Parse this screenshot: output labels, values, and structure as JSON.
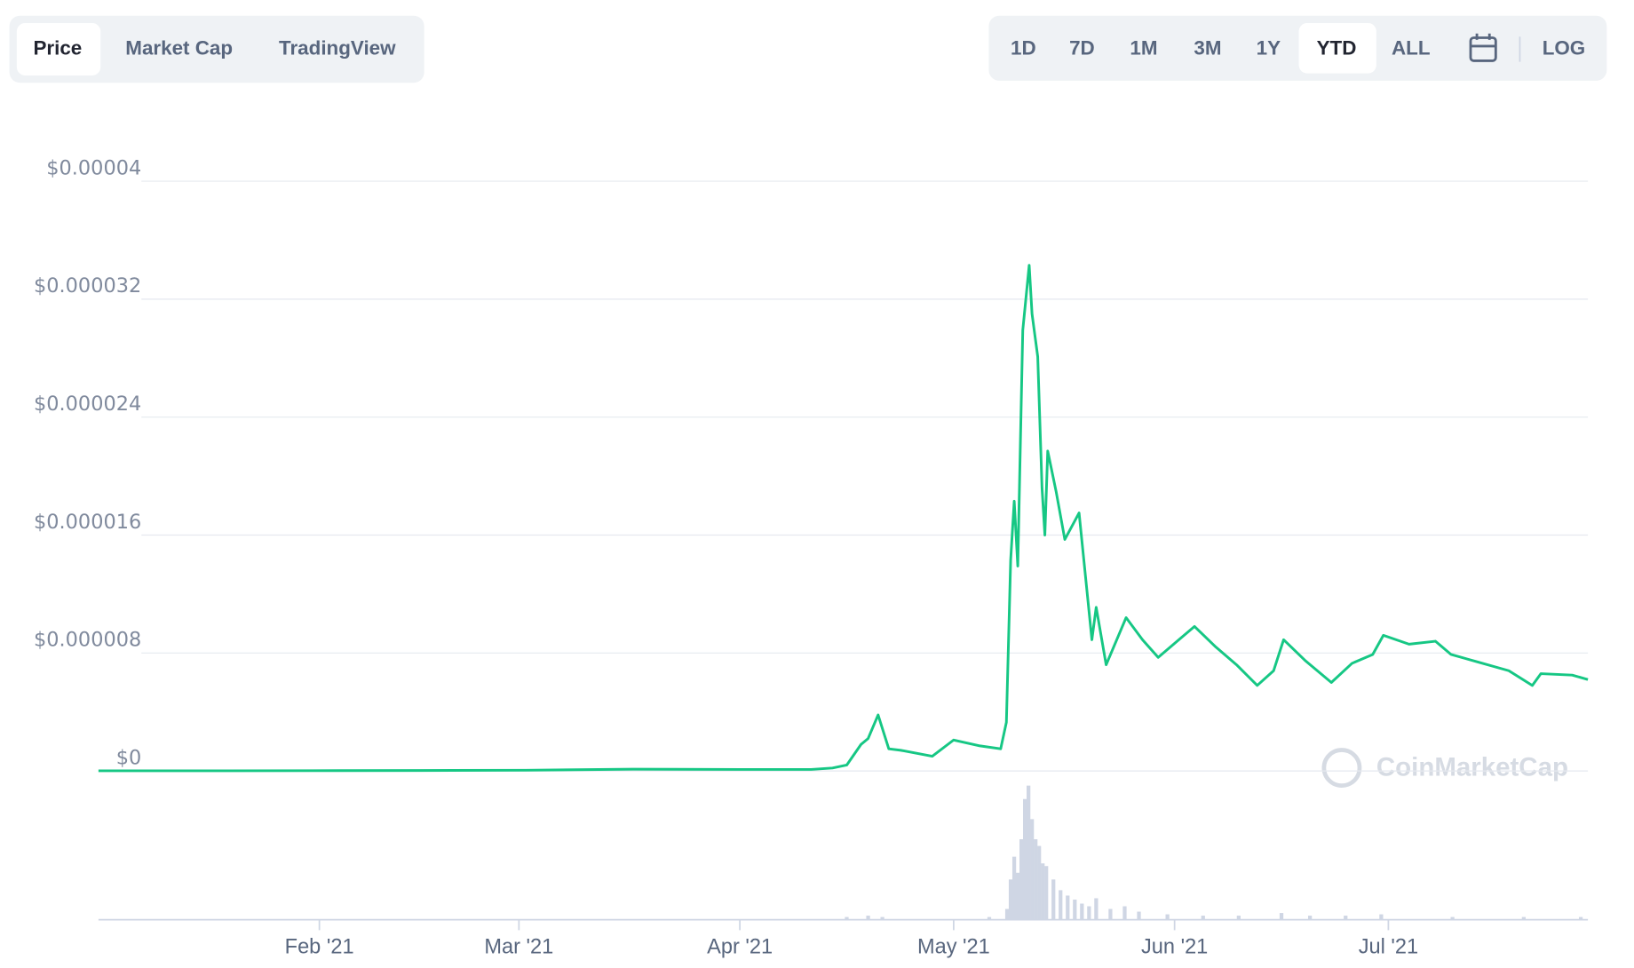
{
  "tabs": [
    "Price",
    "Market Cap",
    "TradingView"
  ],
  "ranges": [
    "1D",
    "7D",
    "1M",
    "3M",
    "1Y",
    "YTD",
    "ALL",
    "LOG"
  ],
  "watermark": "CoinMarketCap",
  "chart_data": {
    "type": "line",
    "xlim": [
      0,
      209
    ],
    "xticks": [
      {
        "value": 31,
        "label": "Feb '21"
      },
      {
        "value": 59,
        "label": "Mar '21"
      },
      {
        "value": 90,
        "label": "Apr '21"
      },
      {
        "value": 120,
        "label": "May '21"
      },
      {
        "value": 151,
        "label": "Jun '21"
      },
      {
        "value": 181,
        "label": "Jul '21"
      }
    ],
    "ylim": [
      0,
      4e-05
    ],
    "yticks": [
      {
        "value": 0,
        "label": "$0"
      },
      {
        "value": 8e-06,
        "label": "$0.000008"
      },
      {
        "value": 1.6e-05,
        "label": "$0.000016"
      },
      {
        "value": 2.4e-05,
        "label": "$0.000024"
      },
      {
        "value": 3.2e-05,
        "label": "$0.000032"
      },
      {
        "value": 4e-05,
        "label": "$0.00004"
      }
    ],
    "grid": true,
    "series": [
      {
        "color": "#16c784",
        "x": [
          0,
          15,
          30,
          45,
          60,
          75,
          90,
          100,
          103,
          105,
          107,
          108,
          109.4,
          110.9,
          112.6,
          117,
          120,
          123.7,
          126.6,
          127.4,
          128,
          128.5,
          129,
          129.7,
          130.6,
          131,
          131.8,
          132.4,
          132.8,
          133.2,
          134.4,
          135.6,
          137.6,
          138.5,
          139.4,
          140,
          141.4,
          144.2,
          146.5,
          148.7,
          151.6,
          153.8,
          156.8,
          159.7,
          162.6,
          164.9,
          166.3,
          169.3,
          173,
          175.9,
          178.8,
          180.3,
          183.9,
          187.6,
          189.8,
          193.5,
          197.9,
          201.2,
          202.4,
          206.8,
          209
        ],
        "values": [
          1e-08,
          1e-08,
          2e-08,
          3e-08,
          5e-08,
          1.2e-07,
          1e-07,
          1e-07,
          2e-07,
          4e-07,
          1.8e-06,
          2.2e-06,
          3.8e-06,
          1.5e-06,
          1.4e-06,
          1e-06,
          2.1e-06,
          1.7e-06,
          1.5e-06,
          3.3e-06,
          1.43e-05,
          1.83e-05,
          1.39e-05,
          2.99e-05,
          3.43e-05,
          3.1e-05,
          2.81e-05,
          1.92e-05,
          1.6e-05,
          2.17e-05,
          1.89e-05,
          1.57e-05,
          1.75e-05,
          1.32e-05,
          8.9e-06,
          1.11e-05,
          7.2e-06,
          1.04e-05,
          8.9e-06,
          7.7e-06,
          8.9e-06,
          9.8e-06,
          8.4e-06,
          7.2e-06,
          5.8e-06,
          6.8e-06,
          8.9e-06,
          7.5e-06,
          6e-06,
          7.3e-06,
          7.9e-06,
          9.2e-06,
          8.6e-06,
          8.8e-06,
          7.9e-06,
          7.4e-06,
          6.8e-06,
          5.8e-06,
          6.6e-06,
          6.5e-06,
          6.2e-06
        ]
      }
    ],
    "volume": {
      "color": "#cfd6e4",
      "ylim": [
        0,
        100
      ],
      "x": [
        105,
        108,
        110,
        125,
        127.5,
        128,
        128.5,
        129,
        129.5,
        130,
        130.5,
        131,
        131.5,
        132,
        132.5,
        133,
        134,
        135,
        136,
        137,
        138,
        139,
        140,
        142,
        144,
        146,
        150,
        155,
        160,
        166,
        170,
        175,
        180,
        190,
        200,
        208
      ],
      "values": [
        2,
        3,
        2,
        2,
        8,
        30,
        47,
        35,
        60,
        90,
        100,
        75,
        60,
        55,
        42,
        40,
        30,
        22,
        18,
        15,
        12,
        10,
        16,
        8,
        10,
        6,
        4,
        3,
        3,
        5,
        3,
        3,
        4,
        2,
        2,
        2
      ]
    }
  }
}
